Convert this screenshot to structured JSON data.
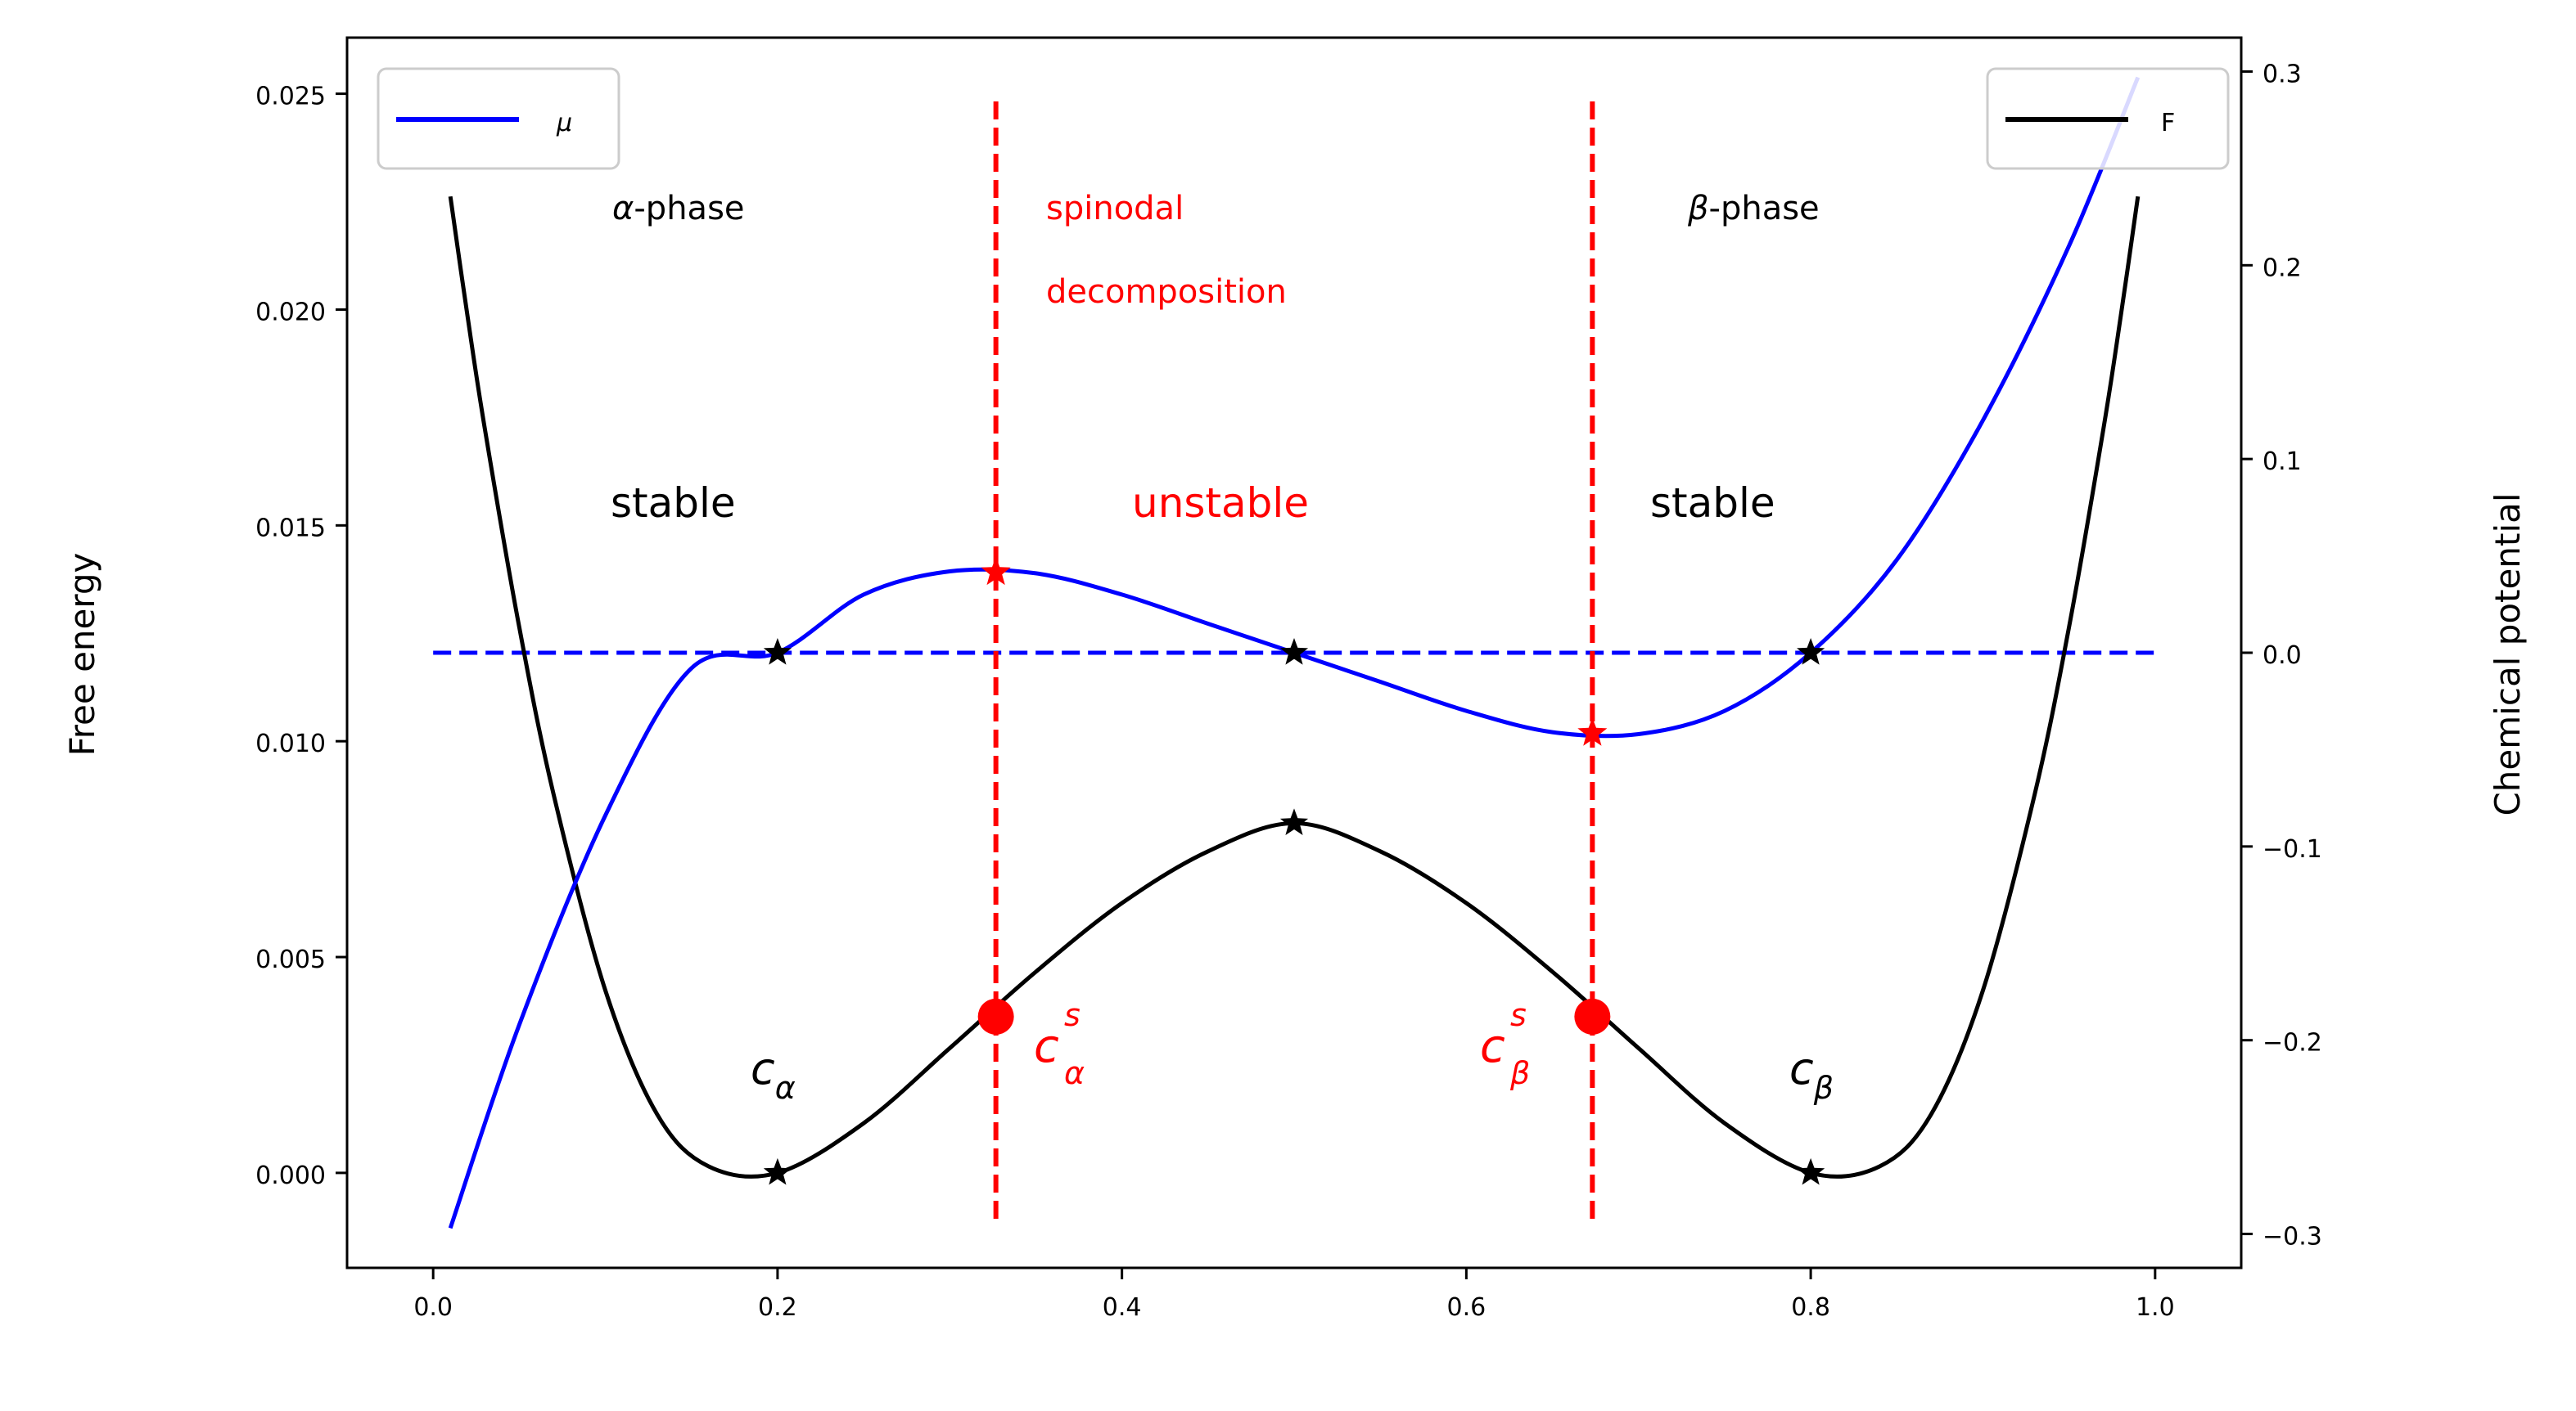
{
  "chart_data": {
    "type": "line",
    "xlim": [
      -0.05,
      1.05
    ],
    "x_ticks": [
      "0.0",
      "0.2",
      "0.4",
      "0.6",
      "0.8",
      "1.0"
    ],
    "left_axis": {
      "label": "Free energy",
      "ylim": [
        -0.0022,
        0.0263
      ],
      "ticks": [
        "0.000",
        "0.005",
        "0.010",
        "0.015",
        "0.020",
        "0.025"
      ]
    },
    "right_axis": {
      "label": "Chemical potential",
      "ylim": [
        -0.3175,
        0.3175
      ],
      "ticks": [
        "−0.3",
        "−0.2",
        "−0.1",
        "0.0",
        "0.1",
        "0.2",
        "0.3"
      ]
    },
    "series": [
      {
        "name": "F",
        "axis": "left",
        "color": "#000000",
        "x": [
          0.01,
          0.02,
          0.03,
          0.05,
          0.07,
          0.1,
          0.13,
          0.16,
          0.2,
          0.25,
          0.3,
          0.35,
          0.4,
          0.45,
          0.5,
          0.55,
          0.6,
          0.65,
          0.7,
          0.75,
          0.8,
          0.84,
          0.87,
          0.9,
          0.93,
          0.95,
          0.97,
          0.98,
          0.99
        ],
        "y": [
          0.02262,
          0.01983,
          0.01724,
          0.01264,
          0.00876,
          0.00423,
          0.00136,
          0.00015,
          0.0,
          0.00115,
          0.00289,
          0.00466,
          0.00625,
          0.00745,
          0.0081,
          0.00745,
          0.00625,
          0.00466,
          0.00289,
          0.00115,
          0.0,
          0.00015,
          0.00136,
          0.00423,
          0.00876,
          0.01264,
          0.01724,
          0.01983,
          0.02262
        ]
      },
      {
        "name": "μ",
        "axis": "right",
        "color": "#0000ff",
        "x": [
          0.01,
          0.05,
          0.1,
          0.15,
          0.2,
          0.25,
          0.3,
          0.35,
          0.4,
          0.45,
          0.5,
          0.55,
          0.6,
          0.65,
          0.7,
          0.75,
          0.8,
          0.85,
          0.9,
          0.95,
          0.99
        ],
        "y": [
          -0.297,
          -0.192,
          -0.084,
          -0.008,
          0.0,
          0.03,
          0.042,
          0.041,
          0.03,
          0.015,
          0.0,
          -0.015,
          -0.03,
          -0.041,
          -0.042,
          -0.03,
          0.0,
          0.048,
          0.12,
          0.21,
          0.297
        ]
      }
    ],
    "reference_lines": {
      "mu_zero_dashed": {
        "y": 0.0,
        "x_from": 0.0,
        "x_to": 1.0,
        "color": "#0000ff"
      },
      "spinodal_verticals": [
        0.3268,
        0.6732
      ]
    },
    "markers": {
      "F_stars": [
        [
          0.2,
          0.0
        ],
        [
          0.5,
          0.0081
        ],
        [
          0.8,
          0.0
        ]
      ],
      "mu_stars": [
        [
          0.2,
          0.0
        ],
        [
          0.5,
          0.0
        ],
        [
          0.8,
          0.0
        ]
      ],
      "mu_spinodal_stars": [
        [
          0.3268,
          0.0415
        ],
        [
          0.6732,
          -0.0415
        ]
      ],
      "F_spinodal_dots": [
        [
          0.3268,
          0.00362
        ],
        [
          0.6732,
          0.00362
        ]
      ]
    },
    "legend_left": {
      "label": "μ",
      "placement": "top-left"
    },
    "legend_right": {
      "label": "F",
      "placement": "top-right"
    },
    "annotations": {
      "alpha_phase": {
        "sym": "α",
        "rest": "-phase"
      },
      "beta_phase": {
        "sym": "β",
        "rest": "-phase"
      },
      "spinodal_line1": "spinodal",
      "spinodal_line2": "decomposition",
      "stable_left": "stable",
      "unstable": "unstable",
      "stable_right": "stable",
      "c_alpha": {
        "base": "c",
        "sub": "α"
      },
      "c_beta": {
        "base": "c",
        "sub": "β"
      },
      "c_alpha_s": {
        "base": "c",
        "sub": "α",
        "sup": "s"
      },
      "c_beta_s": {
        "base": "c",
        "sub": "β",
        "sup": "s"
      }
    },
    "colors": {
      "annotation_red": "#ff0000",
      "mu_blue": "#0000ff",
      "f_black": "#000000"
    }
  }
}
